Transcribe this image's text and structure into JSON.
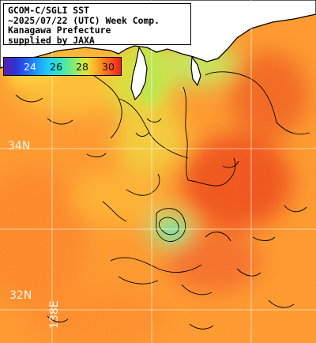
{
  "title_lines": [
    "GCOM-C/SGLI SST",
    "~2025/07/22 (UTC) Week Comp.",
    "Kanagawa Prefecture",
    "supplied by JAXA"
  ],
  "colorbar": {
    "ticks": [
      "24",
      "26",
      "28",
      "30"
    ],
    "tick_values": [
      24,
      26,
      28,
      30
    ],
    "min": 22.5,
    "max": 31.5
  },
  "grid_labels": {
    "lat_34": "34N",
    "lat_32": "32N",
    "lon_138": "138E"
  },
  "colors": {
    "land": "#ffffff",
    "coast": "#000000",
    "warm_ocean": "#ff9a2e",
    "hot_ocean": "#f45a22",
    "cool_ocean": "#b9e34e",
    "cold_ocean": "#7fdc9a",
    "grid": "#ffffff"
  }
}
